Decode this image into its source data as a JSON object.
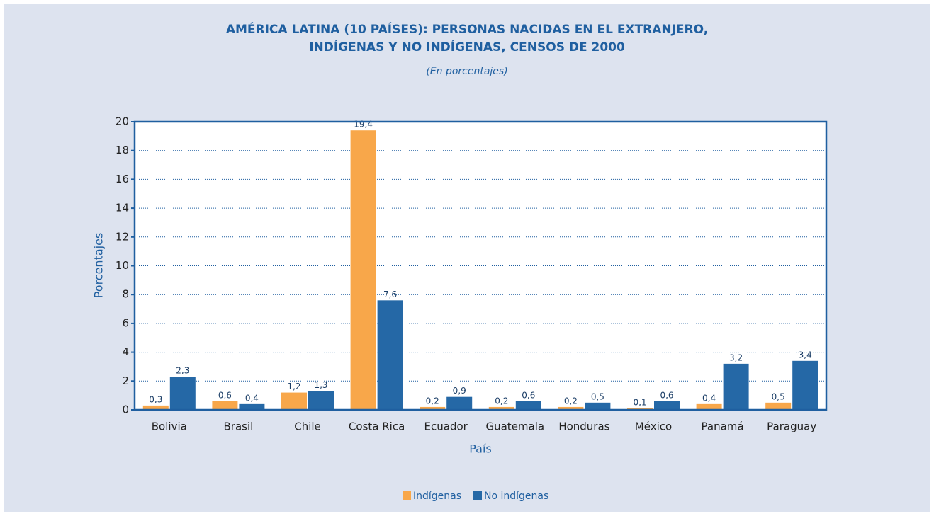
{
  "chart_data": {
    "type": "bar",
    "title": [
      "AMÉRICA LATINA (10 PAÍSES): PERSONAS NACIDAS EN EL EXTRANJERO,",
      "INDÍGENAS Y NO INDÍGENAS, CENSOS DE 2000"
    ],
    "subtitle": "(En porcentajes)",
    "xlabel": "País",
    "ylabel": "Porcentajes",
    "categories": [
      "Bolivia",
      "Brasil",
      "Chile",
      "Costa Rica",
      "Ecuador",
      "Guatemala",
      "Honduras",
      "México",
      "Panamá",
      "Paraguay"
    ],
    "series": [
      {
        "name": "Indígenas",
        "color": "#f8a74a",
        "values": [
          0.3,
          0.6,
          1.2,
          19.4,
          0.2,
          0.2,
          0.2,
          0.1,
          0.4,
          0.5
        ],
        "value_labels": [
          "0,3",
          "0,6",
          "1,2",
          "19,4",
          "0,2",
          "0,2",
          "0,2",
          "0,1",
          "0,4",
          "0,5"
        ]
      },
      {
        "name": "No indígenas",
        "color": "#2568a6",
        "values": [
          2.3,
          0.4,
          1.3,
          7.6,
          0.9,
          0.6,
          0.5,
          0.6,
          3.2,
          3.4
        ],
        "value_labels": [
          "2,3",
          "0,4",
          "1,3",
          "7,6",
          "0,9",
          "0,6",
          "0,5",
          "0,6",
          "3,2",
          "3,4"
        ]
      }
    ],
    "ylim": [
      0,
      20
    ],
    "yticks": [
      0,
      2,
      4,
      6,
      8,
      10,
      12,
      14,
      16,
      18,
      20
    ],
    "grid": true,
    "legend": "bottom"
  }
}
